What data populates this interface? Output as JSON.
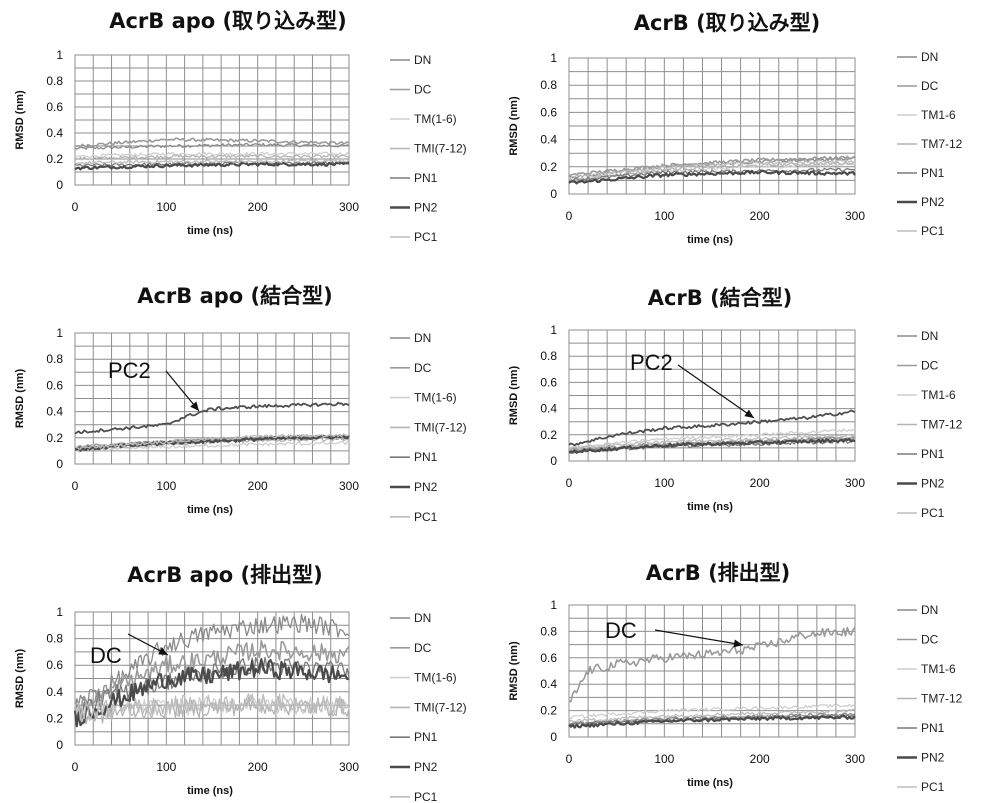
{
  "legend_labels_apo": [
    "DN",
    "DC",
    "TM(1-6)",
    "TMI(7-12)",
    "PN1",
    "PN2",
    "PC1"
  ],
  "legend_labels_acrb": [
    "DN",
    "DC",
    "TM1-6",
    "TM7-12",
    "PN1",
    "PN2",
    "PC1"
  ],
  "legend_colors": [
    "#8a8a8a",
    "#9a9a9a",
    "#cfcfcf",
    "#b4b4b4",
    "#7a7a7a",
    "#4a4a4a",
    "#bdbdbd"
  ],
  "chart_data": [
    {
      "type": "line",
      "title": "AcrB apo (取り込み型)",
      "xlabel": "time (ns)",
      "ylabel": "RMSD (nm)",
      "xlim": [
        0,
        300
      ],
      "ylim": [
        0,
        1
      ],
      "xticks": [
        "0",
        "100",
        "200",
        "300"
      ],
      "yticks": [
        "0",
        "0.2",
        "0.4",
        "0.6",
        "0.8",
        "1"
      ],
      "grid": true,
      "legend": "right",
      "series": [
        {
          "name": "DN",
          "x": [
            0,
            100,
            200,
            300
          ],
          "y": [
            0.28,
            0.3,
            0.31,
            0.3
          ]
        },
        {
          "name": "DC",
          "x": [
            0,
            100,
            200,
            300
          ],
          "y": [
            0.3,
            0.35,
            0.34,
            0.32
          ]
        },
        {
          "name": "TM(1-6)",
          "x": [
            0,
            100,
            200,
            300
          ],
          "y": [
            0.22,
            0.24,
            0.24,
            0.24
          ]
        },
        {
          "name": "TMI(7-12)",
          "x": [
            0,
            100,
            200,
            300
          ],
          "y": [
            0.2,
            0.22,
            0.22,
            0.22
          ]
        },
        {
          "name": "PN1",
          "x": [
            0,
            100,
            200,
            300
          ],
          "y": [
            0.15,
            0.16,
            0.17,
            0.17
          ]
        },
        {
          "name": "PN2",
          "x": [
            0,
            100,
            200,
            300
          ],
          "y": [
            0.13,
            0.15,
            0.16,
            0.16
          ]
        },
        {
          "name": "PC1",
          "x": [
            0,
            100,
            200,
            300
          ],
          "y": [
            0.17,
            0.18,
            0.18,
            0.19
          ]
        }
      ]
    },
    {
      "type": "line",
      "title": "AcrB (取り込み型)",
      "xlabel": "time (ns)",
      "ylabel": "RMSD (nm)",
      "xlim": [
        0,
        300
      ],
      "ylim": [
        0,
        1
      ],
      "xticks": [
        "0",
        "100",
        "200",
        "300"
      ],
      "yticks": [
        "0",
        "0.2",
        "0.4",
        "0.6",
        "0.8",
        "1"
      ],
      "grid": true,
      "legend": "right",
      "series": [
        {
          "name": "DN",
          "x": [
            0,
            100,
            200,
            300
          ],
          "y": [
            0.12,
            0.2,
            0.24,
            0.26
          ]
        },
        {
          "name": "DC",
          "x": [
            0,
            100,
            200,
            300
          ],
          "y": [
            0.14,
            0.21,
            0.25,
            0.27
          ]
        },
        {
          "name": "TM1-6",
          "x": [
            0,
            100,
            200,
            300
          ],
          "y": [
            0.1,
            0.17,
            0.2,
            0.22
          ]
        },
        {
          "name": "TM7-12",
          "x": [
            0,
            100,
            200,
            300
          ],
          "y": [
            0.1,
            0.18,
            0.21,
            0.23
          ]
        },
        {
          "name": "PN1",
          "x": [
            0,
            100,
            200,
            300
          ],
          "y": [
            0.1,
            0.16,
            0.17,
            0.18
          ]
        },
        {
          "name": "PN2",
          "x": [
            0,
            100,
            200,
            300
          ],
          "y": [
            0.08,
            0.14,
            0.16,
            0.15
          ]
        },
        {
          "name": "PC1",
          "x": [
            0,
            100,
            200,
            300
          ],
          "y": [
            0.12,
            0.2,
            0.23,
            0.24
          ]
        }
      ]
    },
    {
      "type": "line",
      "title": "AcrB apo (結合型)",
      "xlabel": "time (ns)",
      "ylabel": "RMSD (nm)",
      "xlim": [
        0,
        300
      ],
      "ylim": [
        0,
        1
      ],
      "xticks": [
        "0",
        "100",
        "200",
        "300"
      ],
      "yticks": [
        "0",
        "0.2",
        "0.4",
        "0.6",
        "0.8",
        "1"
      ],
      "grid": true,
      "legend": "right",
      "annotations": [
        {
          "text": "PC2",
          "x": 135,
          "y": 0.38
        }
      ],
      "series": [
        {
          "name": "DN",
          "x": [
            0,
            100,
            200,
            300
          ],
          "y": [
            0.12,
            0.16,
            0.19,
            0.2
          ]
        },
        {
          "name": "DC",
          "x": [
            0,
            100,
            200,
            300
          ],
          "y": [
            0.13,
            0.17,
            0.2,
            0.21
          ]
        },
        {
          "name": "TM(1-6)",
          "x": [
            0,
            100,
            200,
            300
          ],
          "y": [
            0.1,
            0.13,
            0.15,
            0.16
          ]
        },
        {
          "name": "TMI(7-12)",
          "x": [
            0,
            100,
            200,
            300
          ],
          "y": [
            0.11,
            0.15,
            0.18,
            0.19
          ]
        },
        {
          "name": "PN1",
          "x": [
            0,
            100,
            200,
            300
          ],
          "y": [
            0.12,
            0.17,
            0.2,
            0.22
          ]
        },
        {
          "name": "PN2",
          "x": [
            0,
            100,
            200,
            300
          ],
          "y": [
            0.11,
            0.16,
            0.19,
            0.21
          ]
        },
        {
          "name": "PC1",
          "x": [
            0,
            100,
            200,
            300
          ],
          "y": [
            0.12,
            0.17,
            0.21,
            0.22
          ]
        },
        {
          "name": "PC2",
          "x": [
            0,
            100,
            120,
            150,
            200,
            300
          ],
          "y": [
            0.24,
            0.3,
            0.36,
            0.42,
            0.44,
            0.46
          ]
        }
      ]
    },
    {
      "type": "line",
      "title": "AcrB (結合型)",
      "xlabel": "time (ns)",
      "ylabel": "RMSD (nm)",
      "xlim": [
        0,
        300
      ],
      "ylim": [
        0,
        1
      ],
      "xticks": [
        "0",
        "100",
        "200",
        "300"
      ],
      "yticks": [
        "0",
        "0.2",
        "0.4",
        "0.6",
        "0.8",
        "1"
      ],
      "grid": true,
      "legend": "right",
      "annotations": [
        {
          "text": "PC2",
          "x": 190,
          "y": 0.32
        }
      ],
      "series": [
        {
          "name": "DN",
          "x": [
            0,
            100,
            200,
            300
          ],
          "y": [
            0.08,
            0.12,
            0.15,
            0.18
          ]
        },
        {
          "name": "DC",
          "x": [
            0,
            100,
            200,
            300
          ],
          "y": [
            0.09,
            0.13,
            0.15,
            0.17
          ]
        },
        {
          "name": "TM1-6",
          "x": [
            0,
            100,
            200,
            300
          ],
          "y": [
            0.1,
            0.17,
            0.2,
            0.24
          ]
        },
        {
          "name": "TM7-12",
          "x": [
            0,
            100,
            200,
            300
          ],
          "y": [
            0.08,
            0.12,
            0.14,
            0.17
          ]
        },
        {
          "name": "PN1",
          "x": [
            0,
            100,
            200,
            300
          ],
          "y": [
            0.07,
            0.11,
            0.13,
            0.15
          ]
        },
        {
          "name": "PN2",
          "x": [
            0,
            100,
            200,
            300
          ],
          "y": [
            0.07,
            0.12,
            0.14,
            0.16
          ]
        },
        {
          "name": "PC1",
          "x": [
            0,
            100,
            200,
            300
          ],
          "y": [
            0.1,
            0.15,
            0.17,
            0.2
          ]
        },
        {
          "name": "PC2",
          "x": [
            0,
            50,
            100,
            150,
            200,
            250,
            300
          ],
          "y": [
            0.12,
            0.2,
            0.25,
            0.27,
            0.3,
            0.33,
            0.38
          ]
        }
      ]
    },
    {
      "type": "line",
      "title": "AcrB apo (排出型)",
      "xlabel": "time (ns)",
      "ylabel": "RMSD (nm)",
      "xlim": [
        0,
        300
      ],
      "ylim": [
        0,
        1
      ],
      "xticks": [
        "0",
        "100",
        "200",
        "300"
      ],
      "yticks": [
        "0",
        "0.2",
        "0.4",
        "0.6",
        "0.8",
        "1"
      ],
      "grid": true,
      "legend": "right",
      "annotations": [
        {
          "text": "DC",
          "x": 100,
          "y": 0.66
        }
      ],
      "series": [
        {
          "name": "DN",
          "x": [
            0,
            50,
            100,
            150,
            200,
            250,
            300
          ],
          "y": [
            0.3,
            0.5,
            0.75,
            0.85,
            0.9,
            0.92,
            0.86
          ]
        },
        {
          "name": "DC",
          "x": [
            0,
            50,
            100,
            150,
            200,
            250,
            300
          ],
          "y": [
            0.25,
            0.45,
            0.6,
            0.65,
            0.72,
            0.7,
            0.68
          ]
        },
        {
          "name": "TM(1-6)",
          "x": [
            0,
            50,
            100,
            150,
            200,
            250,
            300
          ],
          "y": [
            0.22,
            0.27,
            0.28,
            0.3,
            0.31,
            0.3,
            0.29
          ]
        },
        {
          "name": "TMI(7-12)",
          "x": [
            0,
            50,
            100,
            150,
            200,
            250,
            300
          ],
          "y": [
            0.2,
            0.25,
            0.27,
            0.28,
            0.3,
            0.29,
            0.28
          ]
        },
        {
          "name": "PN1",
          "x": [
            0,
            50,
            100,
            150,
            200,
            250,
            300
          ],
          "y": [
            0.25,
            0.4,
            0.48,
            0.55,
            0.6,
            0.58,
            0.55
          ]
        },
        {
          "name": "PN2",
          "x": [
            0,
            50,
            100,
            150,
            200,
            250,
            300
          ],
          "y": [
            0.2,
            0.35,
            0.5,
            0.52,
            0.58,
            0.55,
            0.52
          ]
        },
        {
          "name": "PC1",
          "x": [
            0,
            50,
            100,
            150,
            200,
            250,
            300
          ],
          "y": [
            0.24,
            0.28,
            0.3,
            0.31,
            0.32,
            0.31,
            0.3
          ]
        }
      ]
    },
    {
      "type": "line",
      "title": "AcrB (排出型)",
      "xlabel": "time (ns)",
      "ylabel": "RMSD (nm)",
      "xlim": [
        0,
        300
      ],
      "ylim": [
        0,
        1
      ],
      "xticks": [
        "0",
        "100",
        "200",
        "300"
      ],
      "yticks": [
        "0",
        "0.2",
        "0.4",
        "0.6",
        "0.8",
        "1"
      ],
      "grid": true,
      "legend": "right",
      "annotations": [
        {
          "text": "DC",
          "x": 180,
          "y": 0.7
        }
      ],
      "series": [
        {
          "name": "DN",
          "x": [
            0,
            100,
            200,
            300
          ],
          "y": [
            0.1,
            0.14,
            0.16,
            0.17
          ]
        },
        {
          "name": "DC",
          "x": [
            0,
            20,
            50,
            100,
            150,
            200,
            250,
            300
          ],
          "y": [
            0.25,
            0.5,
            0.55,
            0.6,
            0.63,
            0.68,
            0.78,
            0.8
          ]
        },
        {
          "name": "TM1-6",
          "x": [
            0,
            100,
            200,
            300
          ],
          "y": [
            0.15,
            0.2,
            0.22,
            0.24
          ]
        },
        {
          "name": "TM7-12",
          "x": [
            0,
            100,
            200,
            300
          ],
          "y": [
            0.1,
            0.13,
            0.15,
            0.16
          ]
        },
        {
          "name": "PN1",
          "x": [
            0,
            100,
            200,
            300
          ],
          "y": [
            0.1,
            0.13,
            0.15,
            0.16
          ]
        },
        {
          "name": "PN2",
          "x": [
            0,
            100,
            200,
            300
          ],
          "y": [
            0.08,
            0.12,
            0.14,
            0.15
          ]
        },
        {
          "name": "PC1",
          "x": [
            0,
            100,
            200,
            300
          ],
          "y": [
            0.12,
            0.16,
            0.18,
            0.2
          ]
        }
      ]
    }
  ]
}
